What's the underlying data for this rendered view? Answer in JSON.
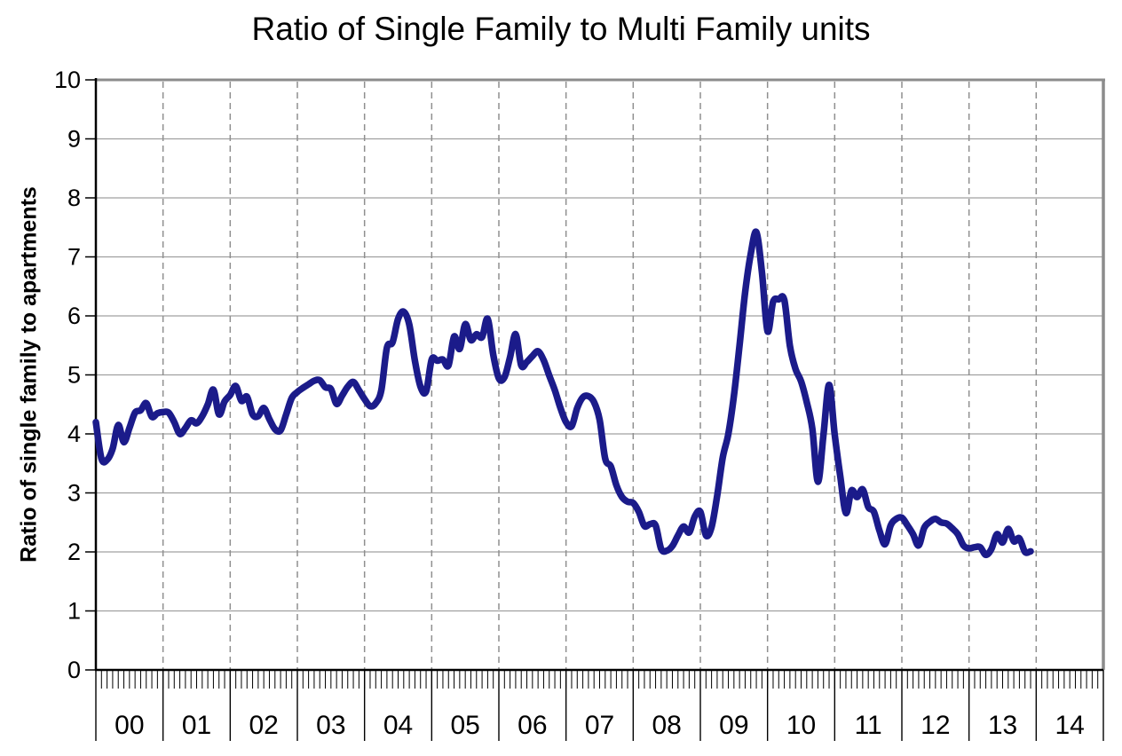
{
  "chart": {
    "title": "Ratio of Single Family to Multi Family units",
    "y_axis_label": "Ratio of single family to apartments"
  },
  "colors": {
    "line": "#1b1b8a",
    "grid_horizontal": "#a0a0a0",
    "grid_vertical_dashed": "#8f8f8f",
    "plot_border": "#8c8c8c",
    "axis": "#000000",
    "text": "#000000",
    "background": "#ffffff"
  },
  "chart_data": {
    "type": "line",
    "title": "Ratio of Single Family to Multi Family units",
    "xlabel": "",
    "ylabel": "Ratio of single family to apartments",
    "ylim": [
      0,
      10
    ],
    "y_ticks": [
      "0",
      "1",
      "2",
      "3",
      "4",
      "5",
      "6",
      "7",
      "8",
      "9",
      "10"
    ],
    "x_tick_labels": [
      "00",
      "01",
      "02",
      "03",
      "04",
      "05",
      "06",
      "07",
      "08",
      "09",
      "10",
      "11",
      "12",
      "13",
      "14"
    ],
    "frequency": "monthly",
    "x_start": "2000-01",
    "x_end": "2013-12",
    "grid": {
      "horizontal": "solid",
      "vertical": "dashed-at-year-boundaries"
    },
    "legend_position": "none",
    "minor_ticks": "monthly below x-axis",
    "series": [
      {
        "name": "Ratio of single family to apartments",
        "color": "#1b1b8a",
        "values": [
          4.2,
          3.58,
          3.56,
          3.75,
          4.15,
          3.86,
          4.1,
          4.36,
          4.4,
          4.52,
          4.29,
          4.35,
          4.37,
          4.36,
          4.2,
          4.0,
          4.1,
          4.23,
          4.18,
          4.3,
          4.5,
          4.75,
          4.33,
          4.55,
          4.66,
          4.81,
          4.56,
          4.63,
          4.33,
          4.3,
          4.44,
          4.25,
          4.08,
          4.06,
          4.33,
          4.61,
          4.71,
          4.78,
          4.84,
          4.9,
          4.91,
          4.79,
          4.76,
          4.51,
          4.65,
          4.8,
          4.88,
          4.74,
          4.59,
          4.47,
          4.52,
          4.74,
          5.46,
          5.55,
          5.95,
          6.07,
          5.85,
          5.24,
          4.8,
          4.72,
          5.26,
          5.24,
          5.26,
          5.16,
          5.65,
          5.44,
          5.86,
          5.59,
          5.69,
          5.64,
          5.95,
          5.34,
          4.94,
          4.96,
          5.3,
          5.69,
          5.16,
          5.22,
          5.32,
          5.4,
          5.25,
          4.99,
          4.74,
          4.44,
          4.2,
          4.13,
          4.44,
          4.62,
          4.64,
          4.54,
          4.24,
          3.58,
          3.45,
          3.13,
          2.93,
          2.85,
          2.83,
          2.68,
          2.44,
          2.47,
          2.45,
          2.05,
          2.02,
          2.1,
          2.28,
          2.43,
          2.33,
          2.6,
          2.68,
          2.28,
          2.42,
          2.95,
          3.6,
          4.0,
          4.65,
          5.5,
          6.4,
          7.05,
          7.42,
          6.74,
          5.74,
          6.24,
          6.28,
          6.27,
          5.49,
          5.1,
          4.89,
          4.54,
          4.09,
          3.19,
          3.99,
          4.83,
          3.99,
          3.28,
          2.66,
          3.04,
          2.93,
          3.06,
          2.76,
          2.68,
          2.36,
          2.13,
          2.45,
          2.56,
          2.58,
          2.45,
          2.3,
          2.11,
          2.41,
          2.51,
          2.56,
          2.5,
          2.48,
          2.4,
          2.3,
          2.11,
          2.06,
          2.08,
          2.08,
          1.95,
          2.05,
          2.3,
          2.16,
          2.39,
          2.18,
          2.23,
          2.0,
          2.01
        ]
      }
    ]
  }
}
